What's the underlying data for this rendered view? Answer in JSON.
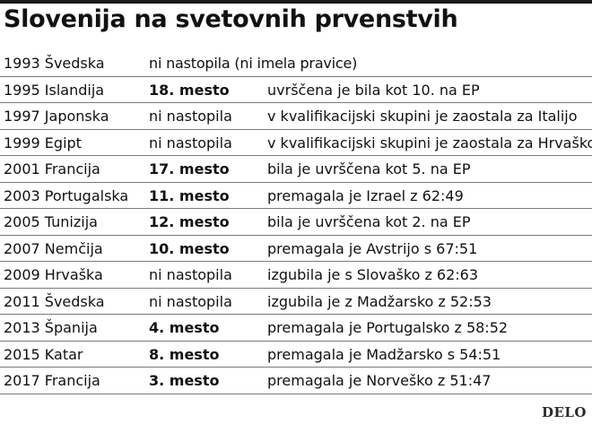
{
  "title": "Slovenija na svetovnih prvenstvih",
  "rows": [
    {
      "year_host": "1993 Švedska",
      "place": "ni nastopila (ni imela pravice)",
      "place_bold": false,
      "note": ""
    },
    {
      "year_host": "1995 Islandija",
      "place": "18. mesto",
      "place_bold": true,
      "note": "uvrščena je bila kot 10. na EP"
    },
    {
      "year_host": "1997 Japonska",
      "place": "ni nastopila",
      "place_bold": false,
      "note": "v kvalifikacijski skupini je zaostala za Italijo"
    },
    {
      "year_host": "1999 Egipt",
      "place": "ni nastopila",
      "place_bold": false,
      "note": "v kvalifikacijski skupini je zaostala za Hrvaško"
    },
    {
      "year_host": "2001 Francija",
      "place": "17. mesto",
      "place_bold": true,
      "note": "bila je uvrščena kot 5. na EP"
    },
    {
      "year_host": "2003 Portugalska",
      "place": "11. mesto",
      "place_bold": true,
      "note": "premagala je Izrael z 62:49"
    },
    {
      "year_host": "2005 Tunizija",
      "place": "12. mesto",
      "place_bold": true,
      "note": "bila je uvrščena kot 2. na EP"
    },
    {
      "year_host": "2007 Nemčija",
      "place": "10. mesto",
      "place_bold": true,
      "note": "premagala je Avstrijo s 67:51"
    },
    {
      "year_host": "2009 Hrvaška",
      "place": "ni nastopila",
      "place_bold": false,
      "note": "izgubila je s Slovaško z 62:63"
    },
    {
      "year_host": "2011 Švedska",
      "place": "ni nastopila",
      "place_bold": false,
      "note": "izgubila je z Madžarsko z 52:53"
    },
    {
      "year_host": "2013 Španija",
      "place": "4. mesto",
      "place_bold": true,
      "note": "premagala je Portugalsko z 58:52"
    },
    {
      "year_host": "2015 Katar",
      "place": "8. mesto",
      "place_bold": true,
      "note": "premagala je Madžarsko s 54:51"
    },
    {
      "year_host": "2017 Francija",
      "place": "3. mesto",
      "place_bold": true,
      "note": "premagala je Norveško z 51:47"
    }
  ],
  "logo": "DELO"
}
